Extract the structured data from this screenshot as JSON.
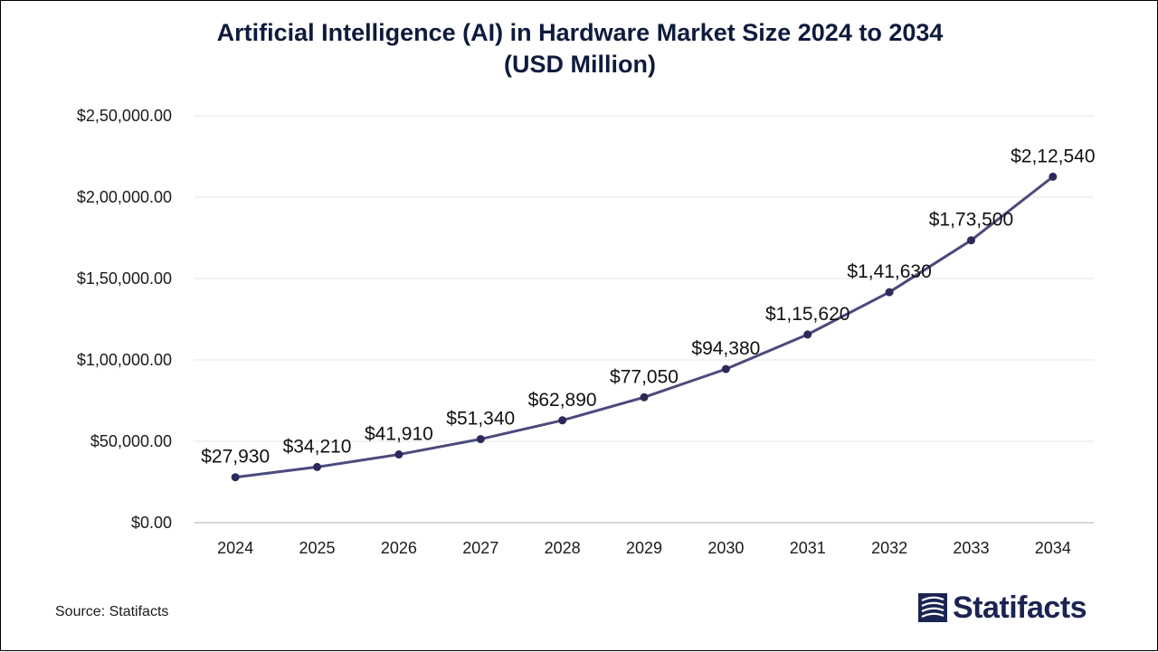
{
  "chart_data": {
    "type": "line",
    "title_line1": "Artificial Intelligence (AI) in Hardware Market Size 2024 to 2034",
    "title_line2": "(USD Million)",
    "xlabel": "",
    "ylabel": "",
    "categories": [
      "2024",
      "2025",
      "2026",
      "2027",
      "2028",
      "2029",
      "2030",
      "2031",
      "2032",
      "2033",
      "2034"
    ],
    "series": [
      {
        "values": [
          27930,
          34210,
          41910,
          51340,
          62890,
          77050,
          94380,
          115620,
          141630,
          173500,
          212540
        ],
        "data_labels": [
          "$27,930",
          "$34,210",
          "$41,910",
          "$51,340",
          "$62,890",
          "$77,050",
          "$94,380",
          "$1,15,620",
          "$1,41,630",
          "$1,73,500",
          "$2,12,540"
        ],
        "color": "#4b4a7d"
      }
    ],
    "ylim": [
      0,
      250000
    ],
    "y_ticks": [
      0,
      50000,
      100000,
      150000,
      200000,
      250000
    ],
    "y_tick_labels": [
      "$0.00",
      "$50,000.00",
      "$1,00,000.00",
      "$1,50,000.00",
      "$2,00,000.00",
      "$2,50,000.00"
    ],
    "grid": true,
    "legend": "none"
  },
  "footer": {
    "source": "Source: Statifacts",
    "logo_text": "Statifacts",
    "logo_icon": "statifacts-logo-icon"
  },
  "colors": {
    "title": "#0f1b3d",
    "line": "#4b4a7d",
    "marker": "#2b2a5a",
    "grid": "#e6e6e6",
    "axis": "#bfbfbf",
    "logo": "#1b2452"
  }
}
